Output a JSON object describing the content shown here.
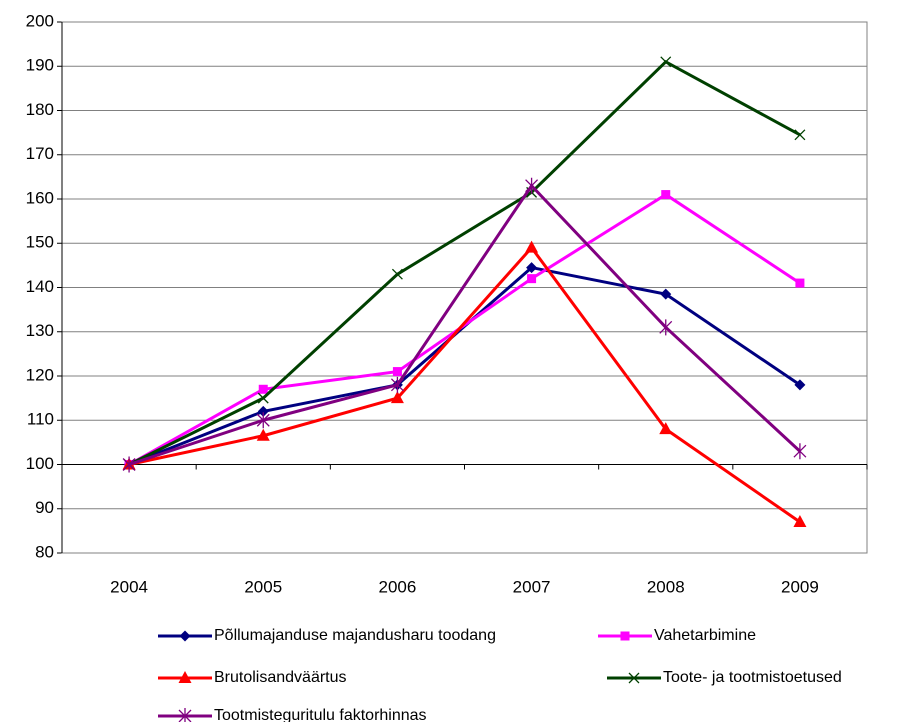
{
  "chart_data": {
    "type": "line",
    "categories": [
      "2004",
      "2005",
      "2006",
      "2007",
      "2008",
      "2009"
    ],
    "series": [
      {
        "name": "Põllumajanduse majandusharu toodang",
        "color": "#000080",
        "marker": "diamond",
        "values": [
          100,
          112,
          118,
          144.5,
          138.5,
          118
        ]
      },
      {
        "name": "Vahetarbimine",
        "color": "#ff00ff",
        "marker": "square",
        "values": [
          100,
          117,
          121,
          142,
          161,
          141
        ]
      },
      {
        "name": "Brutolisandväärtus",
        "color": "#ff0000",
        "marker": "triangle",
        "values": [
          100,
          106.5,
          115,
          149,
          108,
          87
        ]
      },
      {
        "name": "Toote- ja tootmistoetused",
        "color": "#004000",
        "marker": "x",
        "values": [
          100,
          115,
          143,
          161.5,
          191,
          174.5
        ]
      },
      {
        "name": "Tootmisteguritulu faktorhinnas",
        "color": "#800080",
        "marker": "asterisk",
        "values": [
          100,
          110,
          118,
          163,
          131,
          103
        ]
      }
    ],
    "ylim": [
      80,
      200
    ],
    "yticks": [
      80,
      90,
      100,
      110,
      120,
      130,
      140,
      150,
      160,
      170,
      180,
      190,
      200
    ],
    "xaxis_at": 100,
    "grid": true
  }
}
